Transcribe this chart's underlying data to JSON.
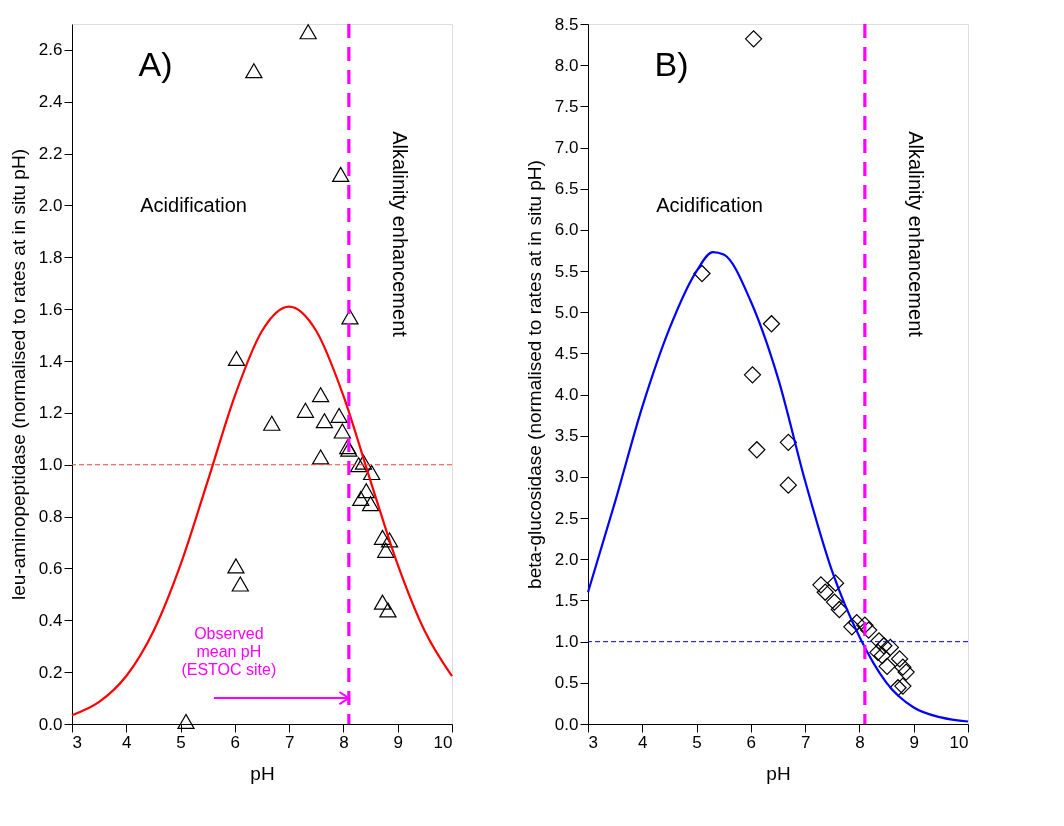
{
  "chart_data": [
    {
      "type": "scatter",
      "xlabel": "pH",
      "ylabel": "leu-aminopeptidase (normalised to rates at in situ pH)",
      "xlim": [
        3,
        10
      ],
      "xticks": [
        3,
        4,
        5,
        6,
        7,
        8,
        9,
        10
      ],
      "ylim": [
        0,
        2.7
      ],
      "yticks": [
        {
          "value": 0,
          "label": "0.0"
        },
        0.2,
        0.4,
        0.6,
        0.8,
        {
          "value": 1,
          "label": "1.0"
        },
        1.2,
        1.4,
        1.6,
        1.8,
        {
          "value": 2,
          "label": "2.0"
        },
        2.2,
        2.4,
        2.6
      ],
      "grid": false,
      "annotations": [
        "A)",
        "Acidification",
        "Alkalinity enhancement",
        {
          "text": "Observed\nmean pH\n(ESTOC site)",
          "x": 8.1,
          "y": 0.1
        }
      ],
      "ref_lines": [
        {
          "axis": "x",
          "value": 8.1,
          "color": "#ff00ff",
          "line_style": "dashed"
        },
        {
          "axis": "y",
          "value": 1,
          "color": "#ff4040",
          "line_style": "dashed"
        }
      ],
      "series": [
        {
          "type": "scatter",
          "marker": "triangle",
          "color": "#000000",
          "x": [
            7.35,
            6.35,
            7.95,
            8.12,
            6.03,
            6.68,
            7.3,
            7.58,
            7.65,
            7.92,
            7.98,
            8.08,
            8.1,
            7.58,
            8.28,
            8.37,
            8.52,
            8.42,
            8.32,
            8.5,
            8.72,
            8.85,
            8.78,
            6.02,
            6.1,
            8.72,
            8.82,
            5.1
          ],
          "values": [
            2.67,
            2.52,
            2.12,
            1.57,
            1.41,
            1.16,
            1.21,
            1.27,
            1.17,
            1.19,
            1.13,
            1.07,
            1.06,
            1.03,
            1.0,
            1.01,
            0.97,
            0.9,
            0.87,
            0.85,
            0.72,
            0.71,
            0.67,
            0.61,
            0.54,
            0.47,
            0.44,
            0.01
          ]
        },
        {
          "type": "line",
          "marker": "none",
          "line_style": "solid",
          "color": "#ff0000",
          "x": [
            3,
            3.5,
            4,
            4.5,
            5,
            5.5,
            6,
            6.5,
            7,
            7.5,
            8,
            8.5,
            9,
            9.5,
            10
          ],
          "values": [
            0.034,
            0.085,
            0.185,
            0.358,
            0.615,
            0.937,
            1.266,
            1.516,
            1.61,
            1.516,
            1.266,
            0.937,
            0.615,
            0.358,
            0.185
          ]
        }
      ]
    },
    {
      "type": "scatter",
      "xlabel": "pH",
      "ylabel": "beta-glucosidase (normalised to rates at in situ pH)",
      "xlim": [
        3,
        10
      ],
      "xticks": [
        3,
        4,
        5,
        6,
        7,
        8,
        9,
        10
      ],
      "ylim": [
        0,
        8.5
      ],
      "yticks": [
        {
          "value": 0,
          "label": "0.0"
        },
        0.5,
        {
          "value": 1,
          "label": "1.0"
        },
        1.5,
        {
          "value": 2,
          "label": "2.0"
        },
        2.5,
        {
          "value": 3,
          "label": "3.0"
        },
        3.5,
        {
          "value": 4,
          "label": "4.0"
        },
        4.5,
        {
          "value": 5,
          "label": "5.0"
        },
        5.5,
        {
          "value": 6,
          "label": "6.0"
        },
        6.5,
        {
          "value": 7,
          "label": "7.0"
        },
        7.5,
        {
          "value": 8,
          "label": "8.0"
        },
        8.5
      ],
      "grid": false,
      "annotations": [
        "B)",
        "Acidification",
        "Alkalinity enhancement"
      ],
      "ref_lines": [
        {
          "axis": "x",
          "value": 8.1,
          "color": "#ff00ff",
          "line_style": "dashed"
        },
        {
          "axis": "y",
          "value": 1,
          "color": "#0000ff",
          "line_style": "dashed"
        }
      ],
      "series": [
        {
          "type": "scatter",
          "marker": "diamond",
          "color": "#000000",
          "x": [
            6.05,
            5.1,
            6.38,
            6.03,
            6.11,
            6.69,
            6.69,
            7.29,
            7.37,
            7.56,
            7.54,
            7.63,
            7.86,
            7.95,
            8.1,
            8.17,
            8.36,
            8.45,
            8.57,
            8.34,
            8.42,
            8.51,
            8.74,
            8.8,
            8.86,
            8.8,
            8.71
          ],
          "values": [
            8.32,
            5.47,
            4.86,
            4.24,
            3.33,
            3.42,
            2.9,
            1.69,
            1.6,
            1.71,
            1.48,
            1.39,
            1.18,
            1.23,
            1.2,
            1.14,
            1.01,
            0.95,
            0.93,
            0.87,
            0.83,
            0.7,
            0.79,
            0.69,
            0.63,
            0.46,
            0.44
          ]
        },
        {
          "type": "line",
          "marker": "none",
          "line_style": "solid",
          "color": "#0000ff",
          "x": [
            3,
            3.5,
            4,
            4.5,
            5,
            5.3,
            5.5,
            6,
            6.5,
            7,
            7.5,
            8,
            8.5,
            9,
            9.5,
            10
          ],
          "values": [
            1.6,
            2.7,
            3.85,
            4.8,
            5.5,
            5.73,
            5.7,
            5.13,
            4.2,
            2.95,
            1.85,
            1.06,
            0.5,
            0.2,
            0.08,
            0.03
          ]
        }
      ]
    }
  ]
}
